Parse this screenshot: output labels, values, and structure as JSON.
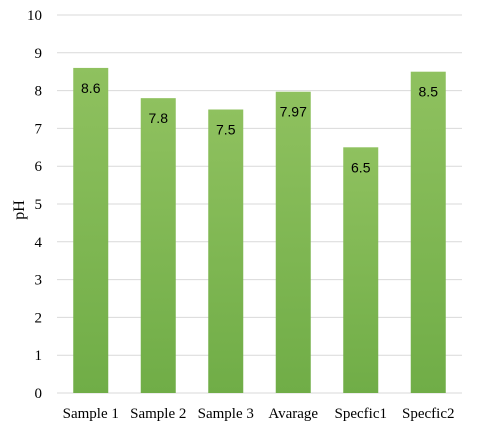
{
  "chart_data": {
    "type": "bar",
    "categories": [
      "Sample 1",
      "Sample 2",
      "Sample 3",
      "Avarage",
      "Specfic1",
      "Specfic2"
    ],
    "values": [
      8.6,
      7.8,
      7.5,
      7.97,
      6.5,
      8.5
    ],
    "data_labels": [
      "8.6",
      "7.8",
      "7.5",
      "7.97",
      "6.5",
      "8.5"
    ],
    "title": "",
    "xlabel": "",
    "ylabel": "pH",
    "ylim": [
      0,
      10
    ],
    "yticks": [
      "0",
      "1",
      "2",
      "3",
      "4",
      "5",
      "6",
      "7",
      "8",
      "9",
      "10"
    ],
    "grid": true,
    "legend": "none",
    "bar_color": "#70ad47",
    "bar_color_light": "#8fc15f"
  }
}
